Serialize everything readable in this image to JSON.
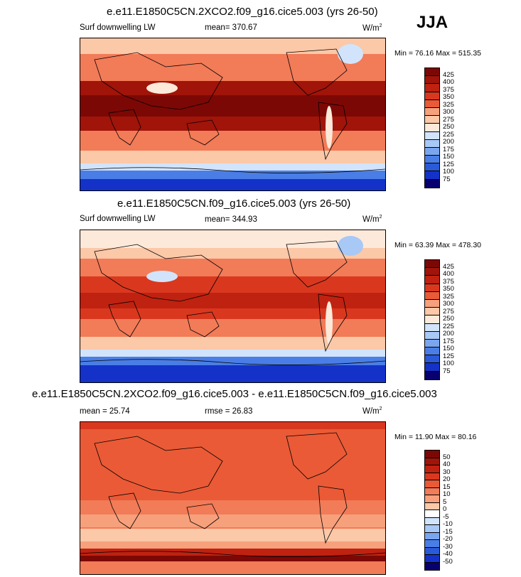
{
  "season": "JJA",
  "palettes": {
    "abs": [
      "#08006f",
      "#1432c8",
      "#2a5ad8",
      "#4a7ee6",
      "#7aa6f0",
      "#a8c8f6",
      "#d2e4fb",
      "#fde9da",
      "#fbc8a8",
      "#f7a07c",
      "#f27b58",
      "#ea5a36",
      "#d9381f",
      "#bf2210",
      "#a0140a",
      "#7c0805"
    ],
    "diff": [
      "#08006f",
      "#1432c8",
      "#2a5ad8",
      "#4a7ee6",
      "#7aa6f0",
      "#a8c8f6",
      "#d2e4fb",
      "#ffffff",
      "#fde9da",
      "#fbc8a8",
      "#f7a07c",
      "#f27b58",
      "#ea5a36",
      "#d9381f",
      "#bf2210",
      "#a0140a",
      "#7c0805"
    ]
  },
  "panels": [
    {
      "title": "e.e11.E1850C5CN.2XCO2.f09_g16.cice5.003 (yrs 26-50)",
      "variable": "Surf downwelling LW",
      "mean": "mean= 370.67",
      "units_base": "W/m",
      "units_exp": "2",
      "minmax": "Min =  76.16 Max = 515.35"
    },
    {
      "title": "e.e11.E1850C5CN.f09_g16.cice5.003 (yrs 26-50)",
      "variable": "Surf downwelling LW",
      "mean": "mean= 344.93",
      "units_base": "W/m",
      "units_exp": "2",
      "minmax": "Min =  63.39 Max = 478.30"
    },
    {
      "title": "e.e11.E1850C5CN.2XCO2.f09_g16.cice5.003 - e.e11.E1850C5CN.f09_g16.cice5.003",
      "variable": "mean =  25.74",
      "mean": "rmse =  26.83",
      "units_base": "W/m",
      "units_exp": "2",
      "minmax": "Min =  11.90 Max =  80.16"
    }
  ],
  "chart_data": [
    {
      "type": "heatmap",
      "title": "e.e11.E1850C5CN.2XCO2.f09_g16.cice5.003 (yrs 26-50)",
      "variable": "Surf downwelling LW",
      "mean": 370.67,
      "min": 76.16,
      "max": 515.35,
      "units": "W/m2",
      "colorbar_levels": [
        "425",
        "400",
        "375",
        "350",
        "325",
        "300",
        "275",
        "250",
        "225",
        "200",
        "175",
        "150",
        "125",
        "100",
        "75"
      ]
    },
    {
      "type": "heatmap",
      "title": "e.e11.E1850C5CN.f09_g16.cice5.003 (yrs 26-50)",
      "variable": "Surf downwelling LW",
      "mean": 344.93,
      "min": 63.39,
      "max": 478.3,
      "units": "W/m2",
      "colorbar_levels": [
        "425",
        "400",
        "375",
        "350",
        "325",
        "300",
        "275",
        "250",
        "225",
        "200",
        "175",
        "150",
        "125",
        "100",
        "75"
      ]
    },
    {
      "type": "heatmap",
      "title": "e.e11.E1850C5CN.2XCO2.f09_g16.cice5.003 - e.e11.E1850C5CN.f09_g16.cice5.003",
      "mean": 25.74,
      "rmse": 26.83,
      "min": 11.9,
      "max": 80.16,
      "units": "W/m2",
      "colorbar_levels": [
        "50",
        "40",
        "30",
        "20",
        "15",
        "10",
        "5",
        "0",
        "-5",
        "-10",
        "-15",
        "-20",
        "-30",
        "-40",
        "-50"
      ]
    }
  ]
}
